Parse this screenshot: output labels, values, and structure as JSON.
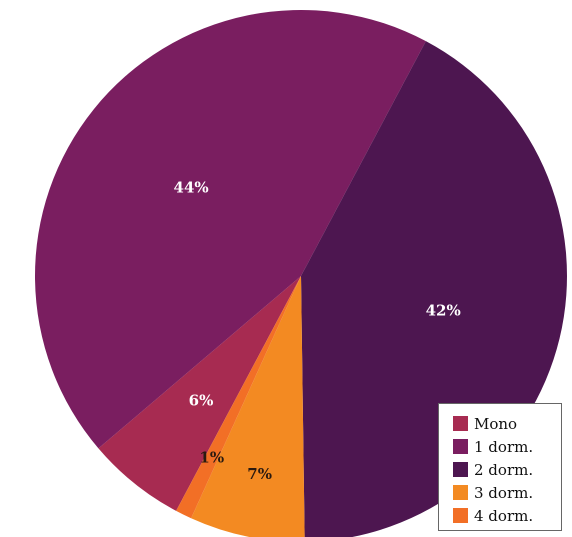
{
  "chart_data": {
    "type": "pie",
    "categories": [
      "Mono",
      "1 dorm.",
      "2 dorm.",
      "3 dorm.",
      "4 dorm."
    ],
    "values": [
      6,
      44,
      42,
      7,
      1
    ],
    "labels": [
      "6%",
      "44%",
      "42%",
      "7%",
      "1%"
    ],
    "colors": [
      "#a72b51",
      "#7a1e60",
      "#4d1650",
      "#f38a22",
      "#f26f26"
    ],
    "label_colors": [
      "#ffffff",
      "#ffffff",
      "#ffffff",
      "#2a1a10",
      "#2a1a10"
    ],
    "legend_position": "bottom-right"
  }
}
